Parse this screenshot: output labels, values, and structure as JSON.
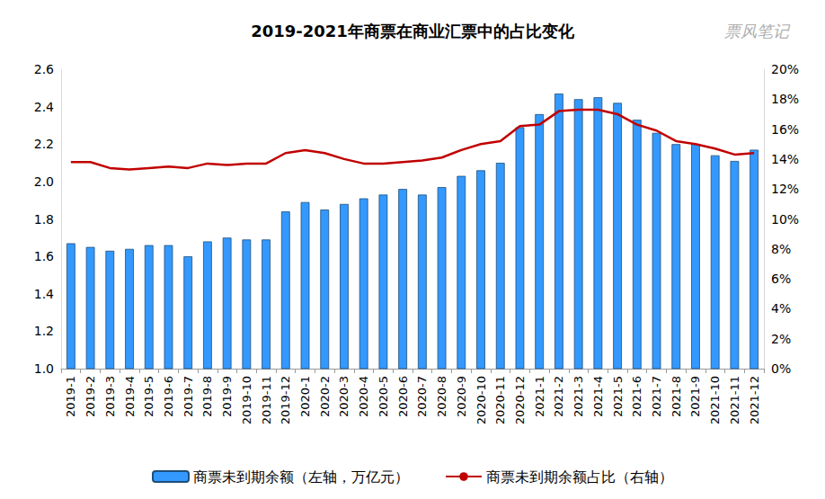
{
  "chart_data": {
    "type": "bar",
    "title": "2019-2021年商票在商业汇票中的占比变化",
    "annotations": [
      "票风笔记"
    ],
    "categories": [
      "2019-1",
      "2019-2",
      "2019-3",
      "2019-4",
      "2019-5",
      "2019-6",
      "2019-7",
      "2019-8",
      "2019-9",
      "2019-10",
      "2019-11",
      "2019-12",
      "2020-1",
      "2020-2",
      "2020-3",
      "2020-4",
      "2020-5",
      "2020-6",
      "2020-7",
      "2020-8",
      "2020-9",
      "2020-10",
      "2020-11",
      "2020-12",
      "2021-1",
      "2021-2",
      "2021-3",
      "2021-4",
      "2021-5",
      "2021-6",
      "2021-7",
      "2021-8",
      "2021-9",
      "2021-10",
      "2021-11",
      "2021-12"
    ],
    "series": [
      {
        "name": "商票未到期余额（左轴，万亿元）",
        "type": "bar",
        "color": "#3399ff",
        "values": [
          1.67,
          1.65,
          1.63,
          1.64,
          1.66,
          1.66,
          1.6,
          1.68,
          1.7,
          1.69,
          1.69,
          1.84,
          1.89,
          1.85,
          1.88,
          1.91,
          1.93,
          1.96,
          1.93,
          1.97,
          2.03,
          2.06,
          2.1,
          2.29,
          2.36,
          2.47,
          2.44,
          2.45,
          2.42,
          2.33,
          2.26,
          2.2,
          2.2,
          2.14,
          2.11,
          2.17
        ]
      },
      {
        "name": "商票未到期余额占比（右轴）",
        "type": "line",
        "color": "#c00000",
        "axis": "y2",
        "marker": "none",
        "line_style": "solid",
        "values": [
          13.8,
          13.8,
          13.4,
          13.3,
          13.4,
          13.5,
          13.4,
          13.7,
          13.6,
          13.7,
          13.7,
          14.4,
          14.6,
          14.4,
          14.0,
          13.7,
          13.7,
          13.8,
          13.9,
          14.1,
          14.6,
          15.0,
          15.2,
          16.2,
          16.3,
          17.2,
          17.3,
          17.3,
          17.0,
          16.3,
          15.9,
          15.2,
          15.0,
          14.7,
          14.3,
          14.4
        ]
      }
    ],
    "ylim": [
      1.0,
      2.6
    ],
    "yticks": [
      {
        "value": 1.0,
        "label": "1.0"
      },
      1.2,
      1.4,
      1.6,
      1.8,
      {
        "value": 2.0,
        "label": "2.0"
      },
      2.2,
      2.4,
      2.6
    ],
    "y2lim": [
      0,
      20
    ],
    "y2ticks": [
      {
        "value": 0,
        "label": "0%"
      },
      {
        "value": 2,
        "label": "2%"
      },
      {
        "value": 4,
        "label": "4%"
      },
      {
        "value": 6,
        "label": "6%"
      },
      {
        "value": 8,
        "label": "8%"
      },
      {
        "value": 10,
        "label": "10%"
      },
      {
        "value": 12,
        "label": "12%"
      },
      {
        "value": 14,
        "label": "14%"
      },
      {
        "value": 16,
        "label": "16%"
      },
      {
        "value": 18,
        "label": "18%"
      },
      {
        "value": 20,
        "label": "20%"
      }
    ],
    "grid": false,
    "legend": "bottom"
  }
}
